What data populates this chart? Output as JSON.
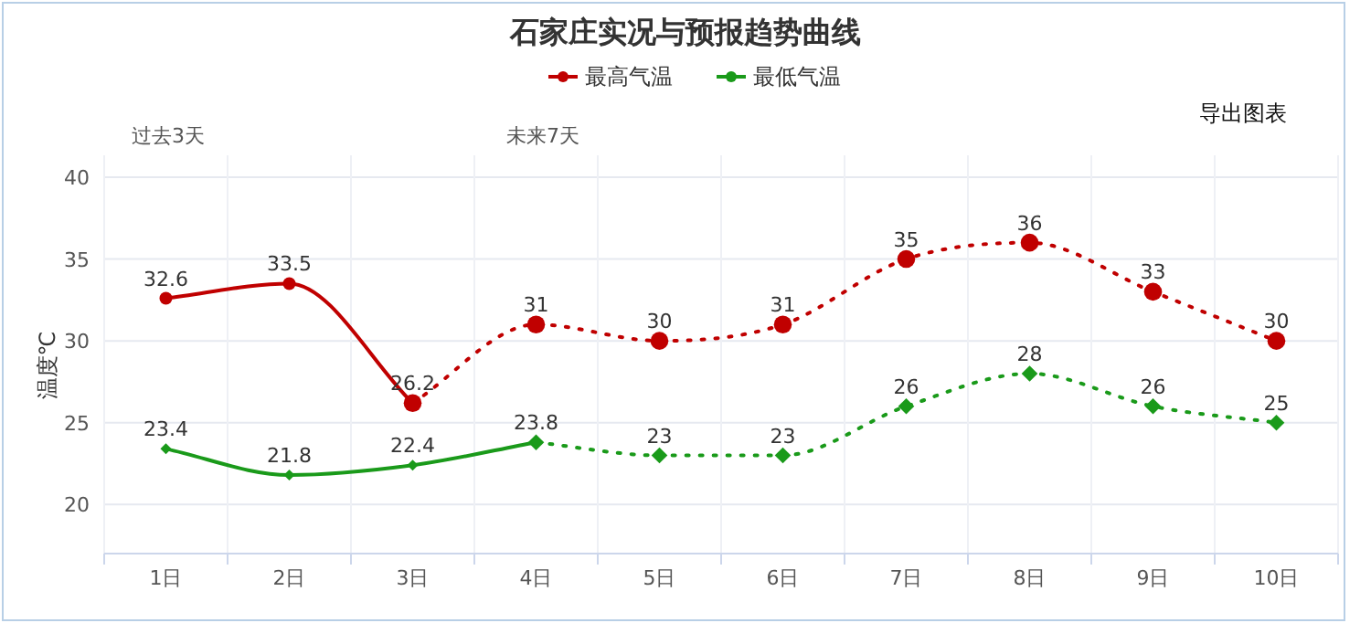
{
  "chart_data": {
    "type": "line",
    "title": "石家庄实况与预报趋势曲线",
    "ylabel": "温度℃",
    "categories": [
      "1日",
      "2日",
      "3日",
      "4日",
      "5日",
      "6日",
      "7日",
      "8日",
      "9日",
      "10日"
    ],
    "series": [
      {
        "name": "最高气温",
        "color": "#c00000",
        "line_style": "solid",
        "marker": "circle",
        "values": [
          32.6,
          33.5,
          26.2,
          null,
          null,
          null,
          null,
          null,
          null,
          null
        ],
        "value_labels": [
          "32.6",
          "33.5",
          "26.2",
          null,
          null,
          null,
          null,
          null,
          null,
          null
        ]
      },
      {
        "color": "#c00000",
        "line_style": "dotted",
        "marker": "circle",
        "values": [
          null,
          null,
          26.2,
          31,
          30,
          31,
          35,
          36,
          33,
          30
        ],
        "value_labels": [
          null,
          null,
          null,
          "31",
          "30",
          "31",
          "35",
          "36",
          "33",
          "30"
        ]
      },
      {
        "name": "最低气温",
        "color": "#1a9a1a",
        "line_style": "solid",
        "marker": "diamond",
        "values": [
          23.4,
          21.8,
          22.4,
          23.8,
          null,
          null,
          null,
          null,
          null,
          null
        ],
        "value_labels": [
          "23.4",
          "21.8",
          "22.4",
          "23.8",
          null,
          null,
          null,
          null,
          null,
          null
        ]
      },
      {
        "color": "#1a9a1a",
        "line_style": "dotted",
        "marker": "diamond",
        "values": [
          null,
          null,
          null,
          23.8,
          23,
          23,
          26,
          28,
          26,
          25
        ],
        "value_labels": [
          null,
          null,
          null,
          null,
          "23",
          "23",
          "26",
          "28",
          "26",
          "25"
        ]
      }
    ],
    "ylim": [
      17,
      40
    ],
    "yticks": [
      20,
      25,
      30,
      35,
      40
    ],
    "grid": true,
    "legend": "top",
    "annotations": [
      "过去3天",
      "未来7天",
      "导出图表"
    ]
  }
}
